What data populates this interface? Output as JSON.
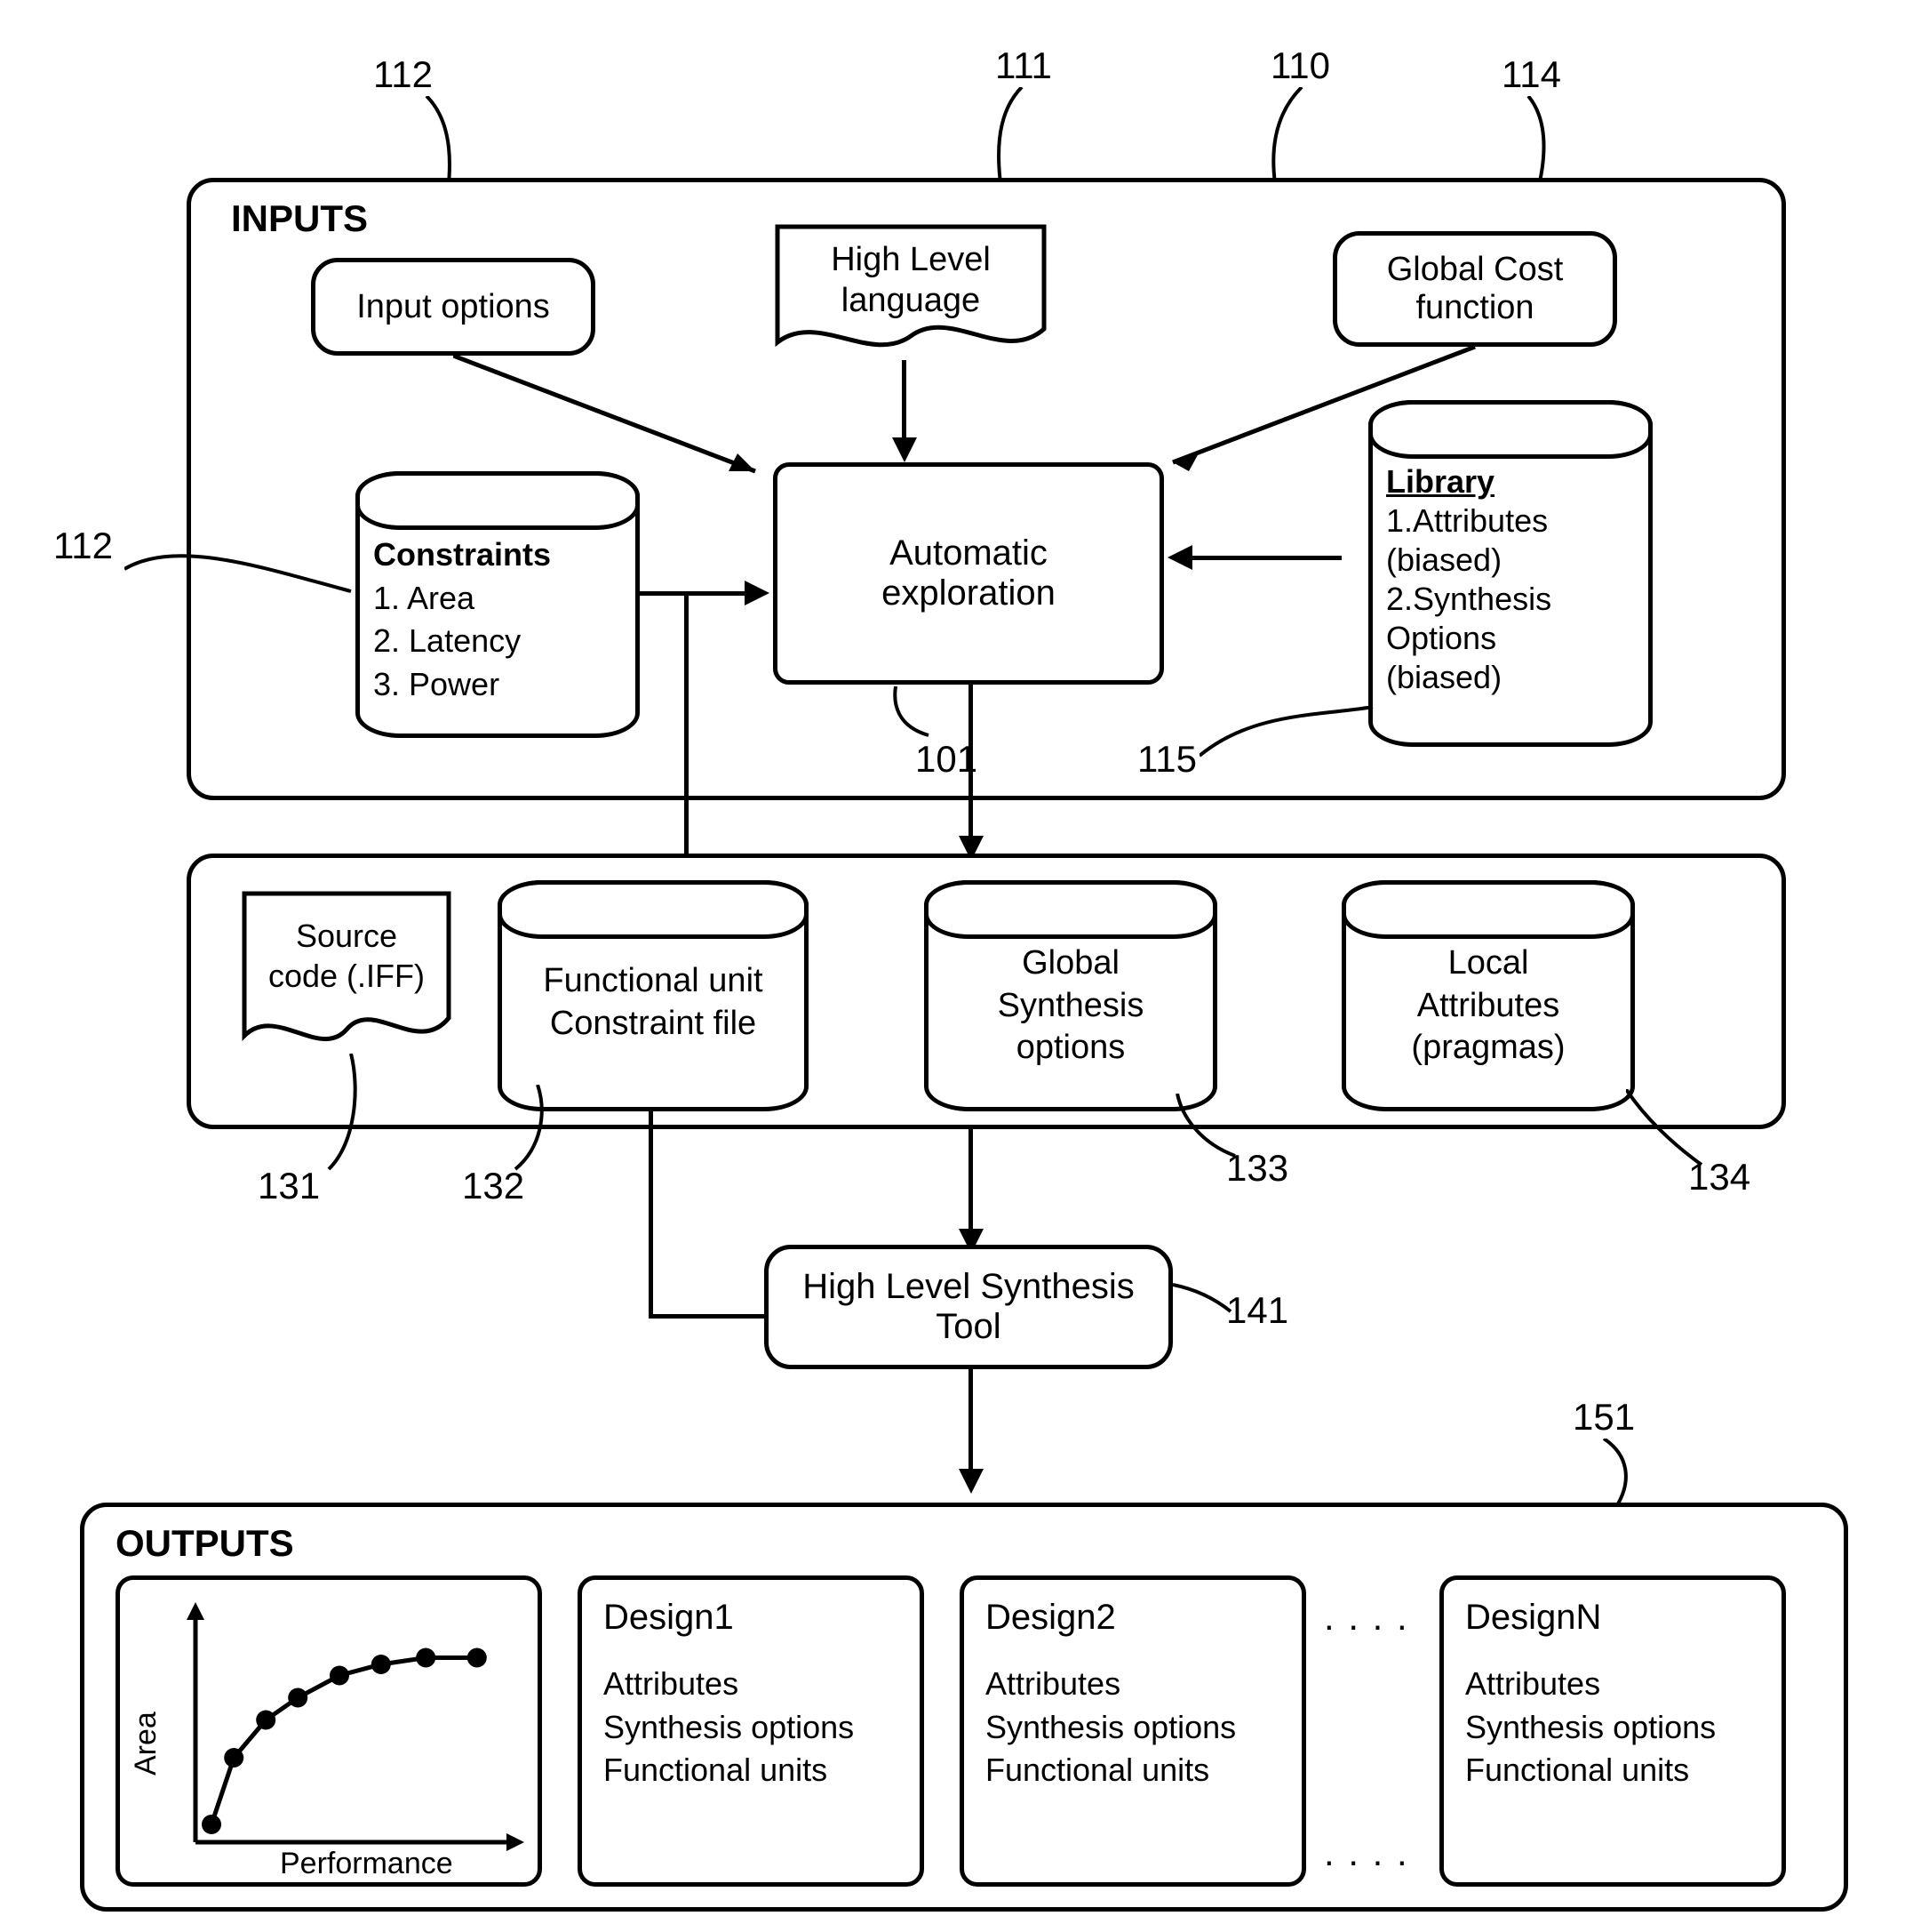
{
  "refs": {
    "r112a": "112",
    "r111": "111",
    "r110": "110",
    "r114": "114",
    "r112b": "112",
    "r101": "101",
    "r115": "115",
    "r131": "131",
    "r132": "132",
    "r133": "133",
    "r134": "134",
    "r141": "141",
    "r151": "151"
  },
  "sections": {
    "inputs_title": "INPUTS",
    "outputs_title": "OUTPUTS"
  },
  "boxes": {
    "input_options": "Input options",
    "high_level_language": "High Level\nlanguage",
    "global_cost": "Global Cost\nfunction",
    "constraints_title": "Constraints",
    "constraints_1": "1. Area",
    "constraints_2": "2. Latency",
    "constraints_3": "3. Power",
    "automatic_exploration": "Automatic\nexploration",
    "library_title": "Library",
    "library_1": "1.Attributes",
    "library_1b": "(biased)",
    "library_2": "2.Synthesis",
    "library_2b": "Options",
    "library_2c": "(biased)",
    "source_code": "Source\ncode (.IFF)",
    "func_unit": "Functional unit\nConstraint file",
    "global_synth": "Global\nSynthesis\noptions",
    "local_attr": "Local\nAttributes\n(pragmas)",
    "hls_tool": "High Level Synthesis\nTool"
  },
  "chart": {
    "ylabel": "Area",
    "xlabel": "Performance",
    "points_x": [
      0.05,
      0.12,
      0.22,
      0.32,
      0.45,
      0.58,
      0.72,
      0.88
    ],
    "points_y": [
      0.92,
      0.62,
      0.45,
      0.35,
      0.25,
      0.2,
      0.17,
      0.17
    ],
    "dot_color": "#000000",
    "line_color": "#000000"
  },
  "designs": {
    "d1_title": "Design1",
    "d2_title": "Design2",
    "dn_title": "DesignN",
    "attr": "Attributes",
    "synth": "Synthesis options",
    "func": "Functional units"
  },
  "style": {
    "border_color": "#000000",
    "background": "#ffffff",
    "font_main": 40,
    "font_ref": 42
  }
}
